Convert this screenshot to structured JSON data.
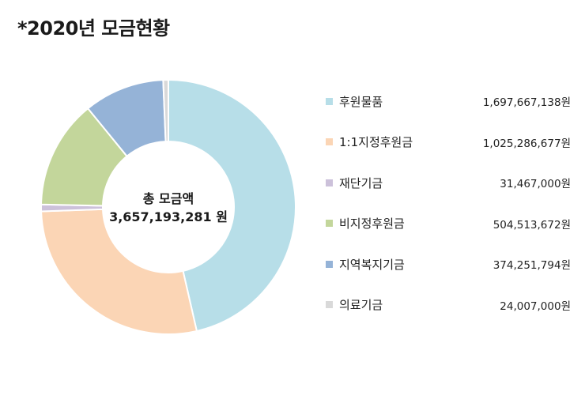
{
  "title": "*2020년 모금현황",
  "chart_data": {
    "type": "pie",
    "donut": true,
    "center_label": "총 모금액",
    "center_value": "3,657,193,281 원",
    "legend_position": "right",
    "slices": [
      {
        "name": "후원물품",
        "value": 1697667138,
        "display": "1,697,667,138원",
        "color": "#b7dee8"
      },
      {
        "name": "1:1지정후원금",
        "value": 1025286677,
        "display": "1,025,286,677원",
        "color": "#fbd5b5"
      },
      {
        "name": "재단기금",
        "value": 31467000,
        "display": "31,467,000원",
        "color": "#ccc1da"
      },
      {
        "name": "비지정후원금",
        "value": 504513672,
        "display": "504,513,672원",
        "color": "#c3d69b"
      },
      {
        "name": "지역복지기금",
        "value": 374251794,
        "display": "374,251,794원",
        "color": "#95b3d7"
      },
      {
        "name": "의료기금",
        "value": 24007000,
        "display": "24,007,000원",
        "color": "#d9d9d9"
      }
    ]
  }
}
